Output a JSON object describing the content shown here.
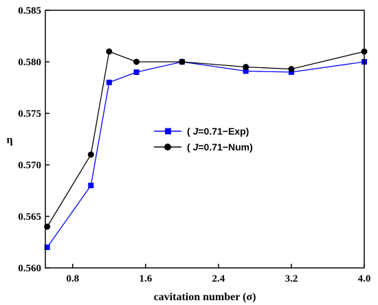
{
  "chart_data": {
    "type": "line",
    "xlabel": "cavitation number (σ)",
    "ylabel": "η",
    "xlim": [
      0.5,
      4.0
    ],
    "ylim": [
      0.56,
      0.585
    ],
    "xticks": [
      "0.8",
      "1.6",
      "2.4",
      "3.2",
      "4.0"
    ],
    "xtick_values": [
      0.8,
      1.6,
      2.4,
      3.2,
      4.0
    ],
    "yticks": [
      "0.560",
      "0.565",
      "0.570",
      "0.575",
      "0.580",
      "0.585"
    ],
    "ytick_values": [
      0.56,
      0.565,
      0.57,
      0.575,
      0.58,
      0.585
    ],
    "legend_position": "center",
    "grid": false,
    "series": [
      {
        "name_prefix": "( ",
        "name_italic": "J",
        "name_suffix": "=0.71−Exp)",
        "color": "#0000ff",
        "line_color": "#0000ff",
        "marker": "square",
        "x": [
          0.52,
          1.0,
          1.2,
          1.5,
          2.0,
          2.7,
          3.2,
          4.0
        ],
        "y": [
          0.562,
          0.568,
          0.578,
          0.579,
          0.58,
          0.5791,
          0.579,
          0.58
        ]
      },
      {
        "name_prefix": "( ",
        "name_italic": "J",
        "name_suffix": "=0.71−Num)",
        "color": "#000000",
        "line_color": "#000000",
        "marker": "circle",
        "x": [
          0.52,
          1.0,
          1.2,
          1.5,
          2.0,
          2.7,
          3.2,
          4.0
        ],
        "y": [
          0.564,
          0.571,
          0.581,
          0.58,
          0.58,
          0.5795,
          0.5793,
          0.581
        ]
      }
    ]
  }
}
